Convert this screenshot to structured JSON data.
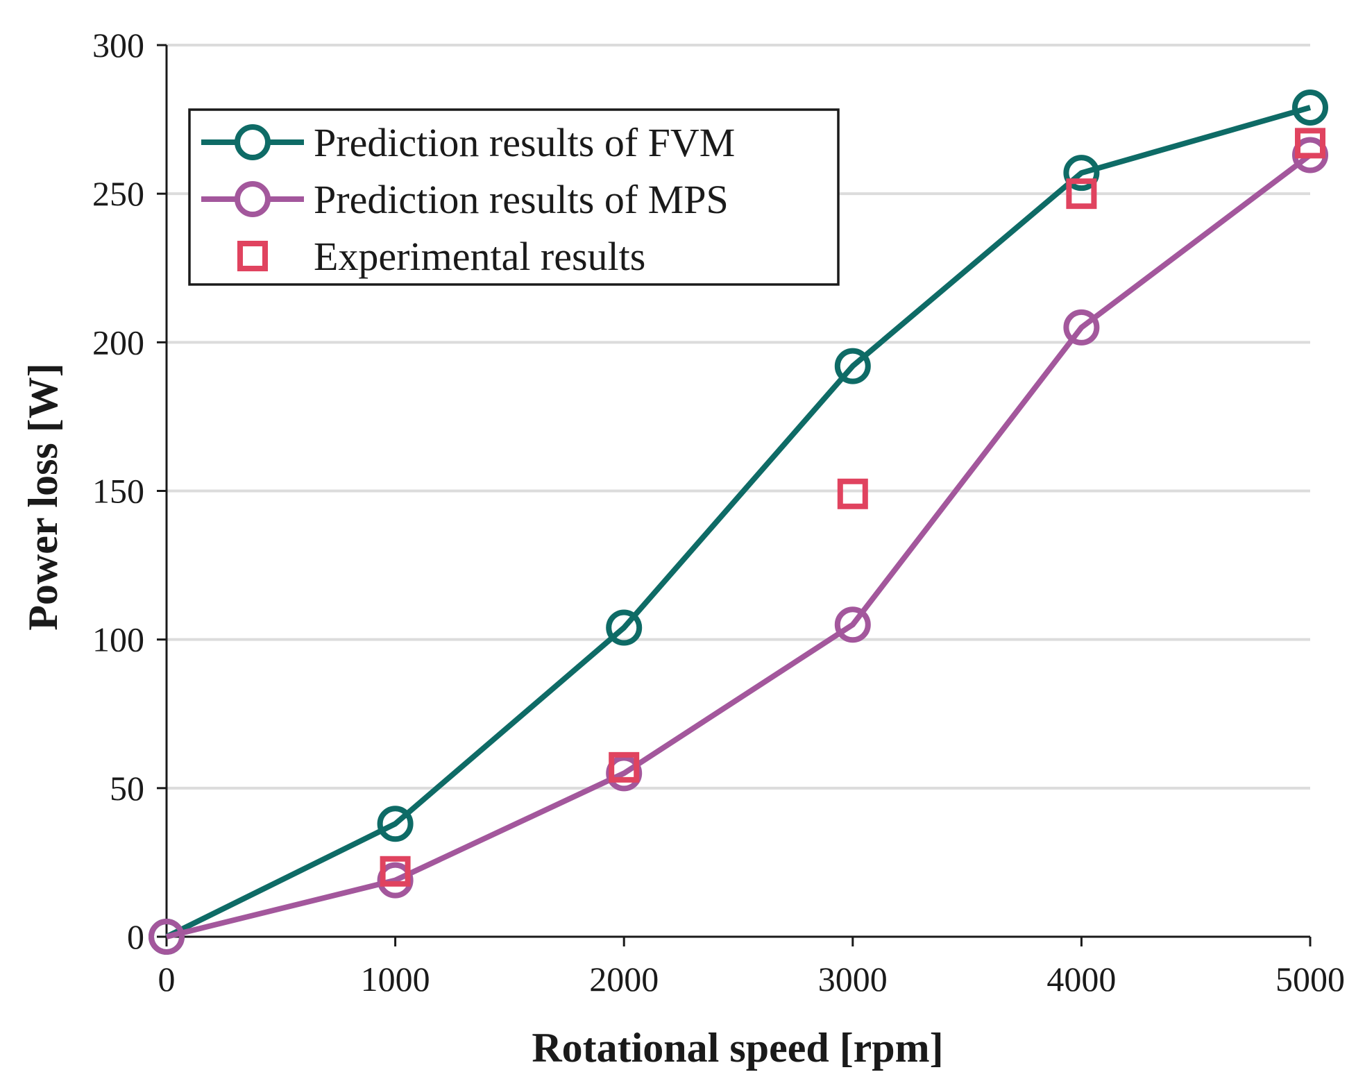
{
  "chart_data": {
    "type": "line",
    "title": "",
    "xlabel": "Rotational speed [rpm]",
    "ylabel": "Power loss [W]",
    "xlim": [
      0,
      5000
    ],
    "ylim": [
      0,
      300
    ],
    "xticks": [
      0,
      1000,
      2000,
      3000,
      4000,
      5000
    ],
    "yticks": [
      0,
      50,
      100,
      150,
      200,
      250,
      300
    ],
    "xtick_labels": [
      "0",
      "1000",
      "2000",
      "3000",
      "4000",
      "5000"
    ],
    "ytick_labels": [
      "0",
      "50",
      "100",
      "150",
      "200",
      "250",
      "300"
    ],
    "grid": "horizontal",
    "legend_position": "top-left",
    "series": [
      {
        "name": "Prediction results of FVM",
        "style": "line-circle",
        "color": "#0e6b66",
        "x": [
          0,
          1000,
          2000,
          3000,
          4000,
          5000
        ],
        "values": [
          0,
          38,
          104,
          192,
          257,
          279
        ]
      },
      {
        "name": "Prediction results of MPS",
        "style": "line-circle",
        "color": "#a3579c",
        "x": [
          0,
          1000,
          2000,
          3000,
          4000,
          5000
        ],
        "values": [
          0,
          19,
          55,
          105,
          205,
          263
        ]
      },
      {
        "name": "Experimental results",
        "style": "square-marker",
        "color": "#e0435f",
        "x": [
          1000,
          2000,
          3000,
          4000,
          5000
        ],
        "values": [
          22,
          57,
          149,
          250,
          267
        ]
      }
    ]
  }
}
